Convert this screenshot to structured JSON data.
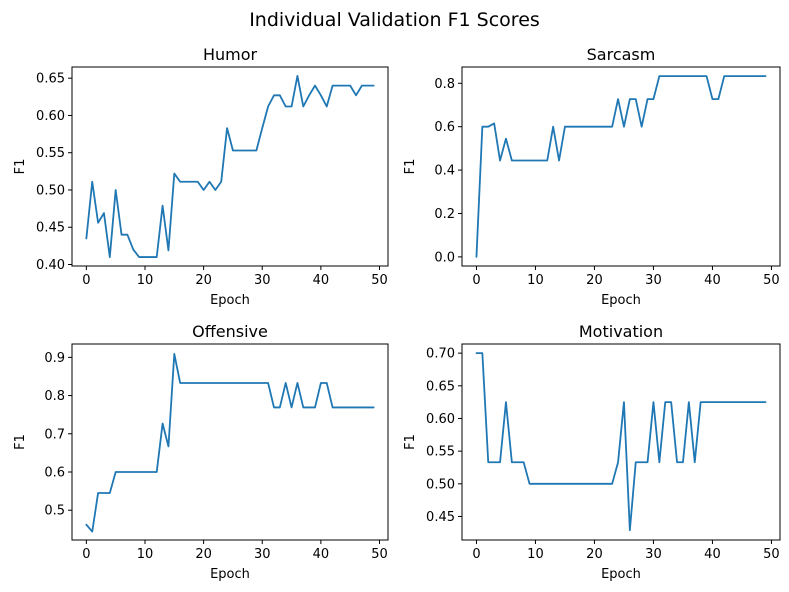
{
  "figure": {
    "suptitle": "Individual Validation F1 Scores",
    "line_color": "#1f77b4"
  },
  "chart_data": [
    {
      "type": "line",
      "title": "Humor",
      "xlabel": "Epoch",
      "ylabel": "F1",
      "xlim": [
        -2.45,
        51.45
      ],
      "ylim": [
        0.398,
        0.665
      ],
      "xticks": [
        0,
        10,
        20,
        30,
        40,
        50
      ],
      "yticks": [
        0.4,
        0.45,
        0.5,
        0.55,
        0.6,
        0.65
      ],
      "ytick_labels": [
        "0.40",
        "0.45",
        "0.50",
        "0.55",
        "0.60",
        "0.65"
      ],
      "x": [
        0,
        1,
        2,
        3,
        4,
        5,
        6,
        7,
        8,
        9,
        10,
        11,
        12,
        13,
        14,
        15,
        16,
        17,
        18,
        19,
        20,
        21,
        22,
        23,
        24,
        25,
        26,
        27,
        28,
        29,
        30,
        31,
        32,
        33,
        34,
        35,
        36,
        37,
        38,
        39,
        40,
        41,
        42,
        43,
        44,
        45,
        46,
        47,
        48,
        49
      ],
      "y": [
        0.435,
        0.511,
        0.456,
        0.469,
        0.41,
        0.5,
        0.44,
        0.44,
        0.42,
        0.41,
        0.41,
        0.41,
        0.41,
        0.479,
        0.419,
        0.522,
        0.511,
        0.511,
        0.511,
        0.511,
        0.5,
        0.511,
        0.5,
        0.511,
        0.583,
        0.553,
        0.553,
        0.553,
        0.553,
        0.553,
        0.583,
        0.612,
        0.627,
        0.627,
        0.612,
        0.612,
        0.653,
        0.612,
        0.627,
        0.64,
        0.627,
        0.612,
        0.64,
        0.64,
        0.64,
        0.64,
        0.627,
        0.64,
        0.64,
        0.64
      ]
    },
    {
      "type": "line",
      "title": "Sarcasm",
      "xlabel": "Epoch",
      "ylabel": "F1",
      "xlim": [
        -2.45,
        51.45
      ],
      "ylim": [
        -0.042,
        0.875
      ],
      "xticks": [
        0,
        10,
        20,
        30,
        40,
        50
      ],
      "yticks": [
        0.0,
        0.2,
        0.4,
        0.6,
        0.8
      ],
      "ytick_labels": [
        "0.0",
        "0.2",
        "0.4",
        "0.6",
        "0.8"
      ],
      "x": [
        0,
        1,
        2,
        3,
        4,
        5,
        6,
        7,
        8,
        9,
        10,
        11,
        12,
        13,
        14,
        15,
        16,
        17,
        18,
        19,
        20,
        21,
        22,
        23,
        24,
        25,
        26,
        27,
        28,
        29,
        30,
        31,
        32,
        33,
        34,
        35,
        36,
        37,
        38,
        39,
        40,
        41,
        42,
        43,
        44,
        45,
        46,
        47,
        48,
        49
      ],
      "y": [
        0.0,
        0.6,
        0.6,
        0.615,
        0.444,
        0.545,
        0.444,
        0.444,
        0.444,
        0.444,
        0.444,
        0.444,
        0.444,
        0.6,
        0.444,
        0.6,
        0.6,
        0.6,
        0.6,
        0.6,
        0.6,
        0.6,
        0.6,
        0.6,
        0.727,
        0.6,
        0.727,
        0.727,
        0.6,
        0.727,
        0.727,
        0.833,
        0.833,
        0.833,
        0.833,
        0.833,
        0.833,
        0.833,
        0.833,
        0.833,
        0.727,
        0.727,
        0.833,
        0.833,
        0.833,
        0.833,
        0.833,
        0.833,
        0.833,
        0.833
      ]
    },
    {
      "type": "line",
      "title": "Offensive",
      "xlabel": "Epoch",
      "ylabel": "F1",
      "xlim": [
        -2.45,
        51.45
      ],
      "ylim": [
        0.422,
        0.935
      ],
      "xticks": [
        0,
        10,
        20,
        30,
        40,
        50
      ],
      "yticks": [
        0.5,
        0.6,
        0.7,
        0.8,
        0.9
      ],
      "ytick_labels": [
        "0.5",
        "0.6",
        "0.7",
        "0.8",
        "0.9"
      ],
      "x": [
        0,
        1,
        2,
        3,
        4,
        5,
        6,
        7,
        8,
        9,
        10,
        11,
        12,
        13,
        14,
        15,
        16,
        17,
        18,
        19,
        20,
        21,
        22,
        23,
        24,
        25,
        26,
        27,
        28,
        29,
        30,
        31,
        32,
        33,
        34,
        35,
        36,
        37,
        38,
        39,
        40,
        41,
        42,
        43,
        44,
        45,
        46,
        47,
        48,
        49
      ],
      "y": [
        0.462,
        0.444,
        0.545,
        0.545,
        0.545,
        0.6,
        0.6,
        0.6,
        0.6,
        0.6,
        0.6,
        0.6,
        0.6,
        0.727,
        0.667,
        0.909,
        0.833,
        0.833,
        0.833,
        0.833,
        0.833,
        0.833,
        0.833,
        0.833,
        0.833,
        0.833,
        0.833,
        0.833,
        0.833,
        0.833,
        0.833,
        0.833,
        0.769,
        0.769,
        0.833,
        0.769,
        0.833,
        0.769,
        0.769,
        0.769,
        0.833,
        0.833,
        0.769,
        0.769,
        0.769,
        0.769,
        0.769,
        0.769,
        0.769,
        0.769
      ]
    },
    {
      "type": "line",
      "title": "Motivation",
      "xlabel": "Epoch",
      "ylabel": "F1",
      "xlim": [
        -2.45,
        51.45
      ],
      "ylim": [
        0.414,
        0.714
      ],
      "xticks": [
        0,
        10,
        20,
        30,
        40,
        50
      ],
      "yticks": [
        0.45,
        0.5,
        0.55,
        0.6,
        0.65,
        0.7
      ],
      "ytick_labels": [
        "0.45",
        "0.50",
        "0.55",
        "0.60",
        "0.65",
        "0.70"
      ],
      "x": [
        0,
        1,
        2,
        3,
        4,
        5,
        6,
        7,
        8,
        9,
        10,
        11,
        12,
        13,
        14,
        15,
        16,
        17,
        18,
        19,
        20,
        21,
        22,
        23,
        24,
        25,
        26,
        27,
        28,
        29,
        30,
        31,
        32,
        33,
        34,
        35,
        36,
        37,
        38,
        39,
        40,
        41,
        42,
        43,
        44,
        45,
        46,
        47,
        48,
        49
      ],
      "y": [
        0.7,
        0.7,
        0.533,
        0.533,
        0.533,
        0.625,
        0.533,
        0.533,
        0.533,
        0.5,
        0.5,
        0.5,
        0.5,
        0.5,
        0.5,
        0.5,
        0.5,
        0.5,
        0.5,
        0.5,
        0.5,
        0.5,
        0.5,
        0.5,
        0.533,
        0.625,
        0.429,
        0.533,
        0.533,
        0.533,
        0.625,
        0.533,
        0.625,
        0.625,
        0.533,
        0.533,
        0.625,
        0.533,
        0.625,
        0.625,
        0.625,
        0.625,
        0.625,
        0.625,
        0.625,
        0.625,
        0.625,
        0.625,
        0.625,
        0.625
      ]
    }
  ]
}
